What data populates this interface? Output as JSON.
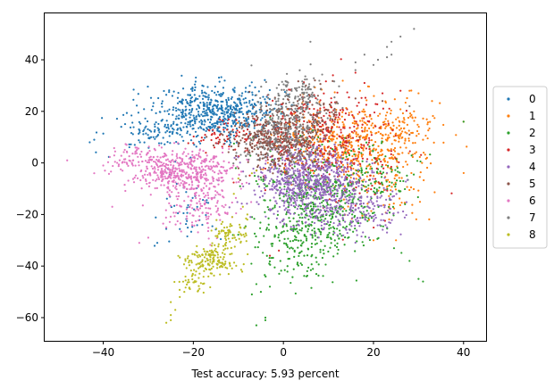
{
  "chart_data": {
    "type": "scatter",
    "title": "",
    "xlabel": "Test accuracy: 5.93 percent",
    "ylabel": "",
    "xlim": [
      -53,
      45
    ],
    "ylim": [
      -69,
      58
    ],
    "xticks": [
      -40,
      -20,
      0,
      20,
      40
    ],
    "yticks": [
      -60,
      -40,
      -20,
      0,
      20,
      40
    ],
    "grid": false,
    "legend_position": "right",
    "series": [
      {
        "name": "0",
        "color": "#1f77b4",
        "clusters": [
          {
            "cx": -15,
            "cy": 20,
            "sx": 7,
            "sy": 5,
            "n": 560
          },
          {
            "cx": -28,
            "cy": 12,
            "sx": 6,
            "sy": 4,
            "n": 110
          },
          {
            "cx": -20,
            "cy": -18,
            "sx": 4,
            "sy": 6,
            "n": 45
          }
        ],
        "points": [
          [
            -42,
            9
          ],
          [
            -43,
            8
          ],
          [
            -36,
            14
          ],
          [
            -33,
            7
          ],
          [
            -18,
            30
          ],
          [
            -14,
            26
          ],
          [
            -5,
            23
          ],
          [
            -28,
            -31
          ],
          [
            -18,
            -24
          ]
        ]
      },
      {
        "name": "1",
        "color": "#ff7f0e",
        "clusters": [
          {
            "cx": 15,
            "cy": 7,
            "sx": 8,
            "sy": 8,
            "n": 480
          },
          {
            "cx": 25,
            "cy": 14,
            "sx": 4,
            "sy": 5,
            "n": 90
          },
          {
            "cx": 22,
            "cy": -10,
            "sx": 5,
            "sy": 8,
            "n": 70
          }
        ],
        "points": [
          [
            28,
            28
          ],
          [
            30,
            27
          ],
          [
            33,
            24
          ],
          [
            31,
            9
          ],
          [
            26,
            6
          ],
          [
            25,
            -30
          ],
          [
            20,
            -30
          ],
          [
            17,
            28
          ],
          [
            40,
            16
          ],
          [
            29,
            20
          ],
          [
            32,
            15
          ]
        ]
      },
      {
        "name": "2",
        "color": "#2ca02c",
        "clusters": [
          {
            "cx": 8,
            "cy": -15,
            "sx": 7,
            "sy": 10,
            "n": 540
          },
          {
            "cx": 3,
            "cy": -33,
            "sx": 5,
            "sy": 8,
            "n": 130
          },
          {
            "cx": 20,
            "cy": -7,
            "sx": 6,
            "sy": 7,
            "n": 110
          }
        ],
        "points": [
          [
            -4,
            -60
          ],
          [
            -4,
            -61
          ],
          [
            -6,
            -63
          ],
          [
            -7,
            -51
          ],
          [
            -5,
            -50
          ],
          [
            -3,
            -48
          ],
          [
            -6,
            -47
          ],
          [
            30,
            -45
          ],
          [
            31,
            -46
          ],
          [
            28,
            -38
          ],
          [
            40,
            16
          ],
          [
            26,
            -11
          ],
          [
            27,
            -16
          ]
        ]
      },
      {
        "name": "3",
        "color": "#d62728",
        "clusters": [
          {
            "cx": 8,
            "cy": 10,
            "sx": 7,
            "sy": 9,
            "n": 320
          },
          {
            "cx": -12,
            "cy": 11,
            "sx": 4,
            "sy": 3,
            "n": 60
          },
          {
            "cx": 17,
            "cy": 1,
            "sx": 6,
            "sy": 10,
            "n": 80
          }
        ],
        "points": [
          [
            16,
            35
          ],
          [
            18,
            31
          ],
          [
            22,
            27
          ],
          [
            26,
            28
          ],
          [
            -1,
            -34
          ],
          [
            -3,
            -36
          ],
          [
            11,
            34
          ]
        ]
      },
      {
        "name": "4",
        "color": "#9467bd",
        "clusters": [
          {
            "cx": 6,
            "cy": -7,
            "sx": 6,
            "sy": 6,
            "n": 700
          },
          {
            "cx": 11,
            "cy": -21,
            "sx": 7,
            "sy": 4,
            "n": 150
          },
          {
            "cx": 21,
            "cy": -16,
            "sx": 4,
            "sy": 5,
            "n": 60
          }
        ],
        "points": [
          [
            23,
            -25
          ],
          [
            23,
            -27
          ],
          [
            19,
            -29
          ],
          [
            12,
            -28
          ],
          [
            17,
            -16
          ],
          [
            5,
            -23
          ]
        ]
      },
      {
        "name": "5",
        "color": "#8c564b",
        "clusters": [
          {
            "cx": 0,
            "cy": 10,
            "sx": 5,
            "sy": 6,
            "n": 370
          },
          {
            "cx": -7,
            "cy": 9,
            "sx": 4,
            "sy": 4,
            "n": 80
          },
          {
            "cx": 6,
            "cy": 18,
            "sx": 4,
            "sy": 6,
            "n": 70
          }
        ],
        "points": [
          [
            5,
            30
          ],
          [
            7,
            32
          ],
          [
            16,
            25
          ],
          [
            22,
            24
          ],
          [
            28,
            11
          ]
        ]
      },
      {
        "name": "6",
        "color": "#e377c2",
        "clusters": [
          {
            "cx": -22,
            "cy": -3,
            "sx": 6,
            "sy": 4,
            "n": 440
          },
          {
            "cx": -19,
            "cy": -16,
            "sx": 4,
            "sy": 5,
            "n": 150
          },
          {
            "cx": -32,
            "cy": 2,
            "sx": 4,
            "sy": 3,
            "n": 70
          }
        ],
        "points": [
          [
            -48,
            1
          ],
          [
            -42,
            -4
          ],
          [
            -38,
            -17
          ],
          [
            -32,
            -31
          ],
          [
            -30,
            -29
          ],
          [
            -26,
            -25
          ],
          [
            -40,
            -1
          ]
        ]
      },
      {
        "name": "7",
        "color": "#7f7f7f",
        "clusters": [
          {
            "cx": 2,
            "cy": 16,
            "sx": 4,
            "sy": 8,
            "n": 260
          },
          {
            "cx": 3,
            "cy": 28,
            "sx": 3,
            "sy": 4,
            "n": 70
          },
          {
            "cx": -2,
            "cy": 5,
            "sx": 4,
            "sy": 4,
            "n": 60
          }
        ],
        "points": [
          [
            29,
            52
          ],
          [
            26,
            49
          ],
          [
            24,
            47
          ],
          [
            23,
            45
          ],
          [
            18,
            42
          ],
          [
            6,
            47
          ],
          [
            24,
            42
          ],
          [
            23,
            41
          ],
          [
            21,
            40
          ],
          [
            20,
            38
          ],
          [
            16,
            36
          ],
          [
            28,
            22
          ],
          [
            16,
            39
          ]
        ]
      },
      {
        "name": "8",
        "color": "#bcbd22",
        "clusters": [
          {
            "cx": -16,
            "cy": -38,
            "sx": 3,
            "sy": 3,
            "n": 150
          },
          {
            "cx": -12,
            "cy": -28,
            "sx": 2,
            "sy": 3,
            "n": 70
          },
          {
            "cx": -20,
            "cy": -47,
            "sx": 2,
            "sy": 2,
            "n": 35
          }
        ],
        "points": [
          [
            -26,
            -62
          ],
          [
            -25,
            -59
          ],
          [
            -25,
            -61
          ],
          [
            -24,
            -57
          ],
          [
            -22,
            -50
          ],
          [
            -8,
            -22
          ],
          [
            -8,
            -20
          ],
          [
            -9,
            -17
          ],
          [
            -11,
            -12
          ],
          [
            -7,
            -4
          ],
          [
            -10,
            -6
          ],
          [
            -6,
            -3
          ],
          [
            -25,
            -54
          ],
          [
            -23,
            -52
          ]
        ]
      }
    ]
  }
}
